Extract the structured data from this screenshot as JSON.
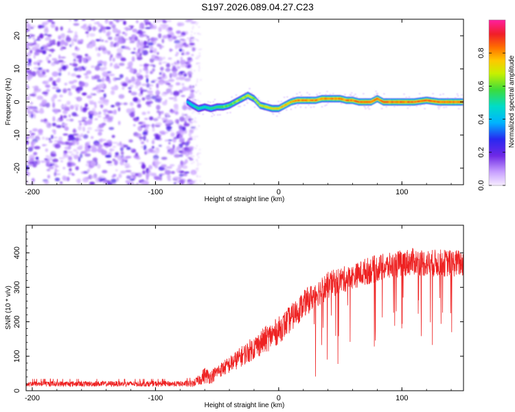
{
  "title": "S197.2026.089.04.27.C23",
  "chart_data": [
    {
      "type": "heatmap",
      "xlabel": "Height of straight line (km)",
      "ylabel": "Frequency (Hz)",
      "xlim": [
        -205,
        150
      ],
      "ylim": [
        -25,
        25
      ],
      "xticks": [
        -200,
        -100,
        0,
        100
      ],
      "yticks": [
        -20,
        -10,
        0,
        10,
        20
      ],
      "noise_region_x": [
        -205,
        -73
      ],
      "ridge": {
        "x": [
          -74,
          -70,
          -65,
          -60,
          -55,
          -50,
          -45,
          -40,
          -35,
          -30,
          -25,
          -20,
          -15,
          -10,
          -5,
          0,
          5,
          10,
          15,
          20,
          25,
          30,
          35,
          40,
          45,
          50,
          55,
          60,
          65,
          70,
          75,
          80,
          85,
          90,
          95,
          100,
          110,
          120,
          130,
          140,
          150
        ],
        "freq": [
          0,
          -1,
          -2,
          -1.5,
          -2,
          -1.5,
          -1.5,
          -1,
          0,
          1,
          2,
          1,
          -1,
          -1.5,
          -2,
          -2,
          -1,
          0,
          0.5,
          0.5,
          0.5,
          0.5,
          1,
          1,
          1,
          1,
          0.5,
          0.5,
          0,
          0,
          0,
          1,
          0,
          0,
          0,
          0,
          0,
          0.5,
          0,
          0,
          0
        ],
        "amp": [
          0.45,
          0.5,
          0.55,
          0.55,
          0.6,
          0.6,
          0.65,
          0.65,
          0.7,
          0.7,
          0.75,
          0.7,
          0.75,
          0.8,
          0.8,
          0.8,
          0.85,
          0.85,
          0.9,
          0.9,
          0.9,
          0.9,
          0.9,
          0.9,
          0.92,
          0.92,
          0.92,
          0.95,
          0.95,
          0.95,
          0.95,
          0.95,
          0.95,
          0.95,
          0.95,
          0.95,
          0.95,
          0.95,
          0.95,
          0.95,
          0.95
        ]
      },
      "colorbar": {
        "label": "Normalized spectral amplitude",
        "range": [
          0,
          1
        ],
        "ticks": [
          0.0,
          0.2,
          0.4,
          0.6,
          0.8
        ],
        "tick_labels": [
          "0.0",
          "0.2",
          "0.4",
          "0.6",
          "0.8"
        ]
      }
    },
    {
      "type": "line",
      "xlabel": "Height of straight line (km)",
      "ylabel": "SNR (10 * v/v)",
      "xlim": [
        -205,
        150
      ],
      "ylim": [
        0,
        480
      ],
      "xticks": [
        -200,
        -100,
        0,
        100
      ],
      "yticks": [
        0,
        100,
        200,
        300,
        400
      ],
      "series": [
        {
          "name": "SNR",
          "color": "#ee2222",
          "envelope": {
            "x": [
              -205,
              -180,
              -160,
              -140,
              -120,
              -100,
              -80,
              -70,
              -65,
              -60,
              -55,
              -50,
              -40,
              -30,
              -20,
              -10,
              0,
              10,
              20,
              30,
              40,
              50,
              60,
              70,
              80,
              90,
              100,
              110,
              120,
              130,
              140,
              150
            ],
            "mid": [
              20,
              20,
              20,
              20,
              20,
              20,
              20,
              20,
              30,
              45,
              40,
              55,
              75,
              100,
              125,
              150,
              175,
              210,
              250,
              280,
              305,
              320,
              330,
              345,
              355,
              360,
              370,
              375,
              370,
              370,
              370,
              370
            ],
            "amp": [
              8,
              8,
              8,
              8,
              8,
              8,
              8,
              10,
              15,
              25,
              20,
              20,
              25,
              30,
              35,
              40,
              40,
              40,
              40,
              40,
              40,
              40,
              35,
              40,
              40,
              40,
              40,
              40,
              40,
              40,
              40,
              40
            ]
          }
        }
      ]
    }
  ]
}
